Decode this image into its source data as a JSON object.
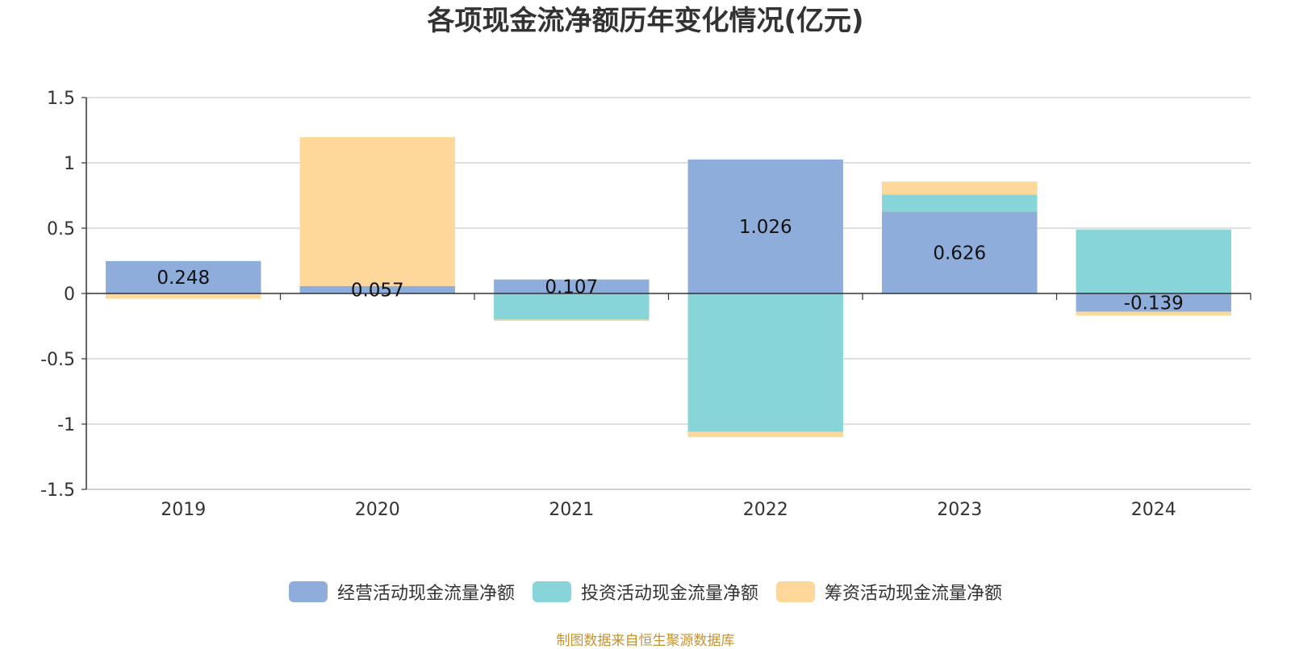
{
  "chart_data": {
    "type": "bar",
    "stacked": true,
    "title": "各项现金流净额历年变化情况(亿元)",
    "categories": [
      "2019",
      "2020",
      "2021",
      "2022",
      "2023",
      "2024"
    ],
    "series": [
      {
        "name": "经营活动现金流量净额",
        "color": "#8eadda",
        "values": [
          0.248,
          0.057,
          0.107,
          1.026,
          0.626,
          -0.139
        ],
        "labels": [
          "0.248",
          "0.057",
          "0.107",
          "1.026",
          "0.626",
          "-0.139"
        ]
      },
      {
        "name": "投资活动现金流量净额",
        "color": "#87d5d8",
        "values": [
          0.0,
          0.0,
          -0.2,
          -1.06,
          0.13,
          0.49
        ]
      },
      {
        "name": "筹资活动现金流量净额",
        "color": "#fdd89a",
        "values": [
          -0.04,
          1.14,
          -0.01,
          -0.04,
          0.1,
          -0.03
        ]
      }
    ],
    "ylim": [
      -1.5,
      1.5
    ],
    "yticks": [
      "1.5",
      "1",
      "0.5",
      "0",
      "-0.5",
      "-1",
      "-1.5"
    ],
    "grid": true,
    "legend_position": "bottom"
  },
  "source_note": "制图数据来自恒生聚源数据库"
}
